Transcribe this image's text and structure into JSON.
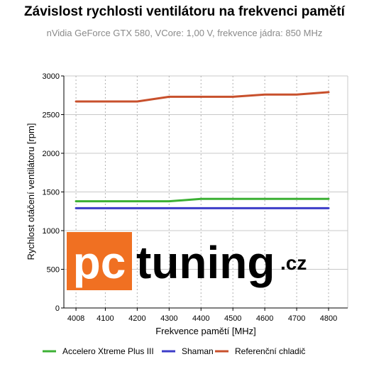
{
  "chart_data": {
    "type": "line",
    "title": "Závislost rychlosti ventilátoru na frekvenci pamětí",
    "subtitle": "nVidia GeForce GTX 580, VCore: 1,00 V, frekvence jádra: 850 MHz",
    "xlabel": "Frekvence pamětí [MHz]",
    "ylabel": "Rychlost otáčení ventilátoru [rpm]",
    "x": [
      4008,
      4100,
      4200,
      4300,
      4400,
      4500,
      4600,
      4700,
      4800
    ],
    "x_ticks": [
      4008,
      4100,
      4200,
      4300,
      4400,
      4500,
      4600,
      4700,
      4800
    ],
    "xlim": [
      3970,
      4860
    ],
    "ylim": [
      0,
      3000
    ],
    "y_ticks": [
      0,
      500,
      1000,
      1500,
      2000,
      2500,
      3000
    ],
    "grid": true,
    "legend_position": "bottom",
    "series": [
      {
        "name": "Accelero Xtreme Plus III",
        "color": "#3cb034",
        "values": [
          1380,
          1380,
          1380,
          1380,
          1410,
          1410,
          1410,
          1410,
          1410
        ]
      },
      {
        "name": "Shaman",
        "color": "#3c3cc8",
        "values": [
          1290,
          1290,
          1290,
          1290,
          1290,
          1290,
          1290,
          1290,
          1290
        ]
      },
      {
        "name": "Referenční chladič",
        "color": "#c8502c",
        "values": [
          2670,
          2670,
          2670,
          2730,
          2730,
          2730,
          2760,
          2760,
          2790
        ]
      }
    ]
  },
  "watermark": {
    "text": "pctuning.cz",
    "bg_color": "#f07022"
  }
}
